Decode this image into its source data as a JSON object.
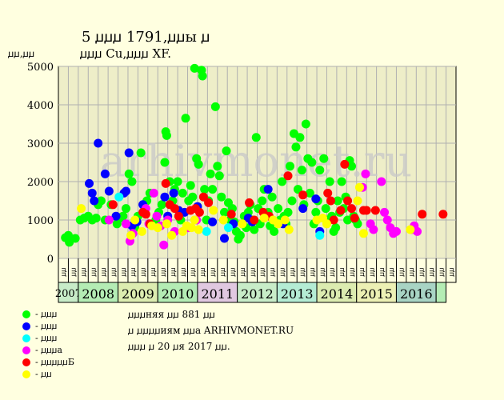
{
  "title_line1": "5 ꙡꙡꙡ 1791,ꙡꙡы ꙡ",
  "title_line2": "ꙡꙡꙡ Cu,ꙡꙡꙡ XF.",
  "y_unit_label": "ꙡꙡ,ꙡꙡ",
  "watermark": "arhivmonet.ru",
  "legend": [
    {
      "label": "- ꙡꙡꙡ",
      "color": "#00ff00"
    },
    {
      "label": "- ꙡꙡꙡ",
      "color": "#0000ff"
    },
    {
      "label": "- ꙡꙡꙡ",
      "color": "#00ffff"
    },
    {
      "label": "- ꙡꙡꙡа",
      "color": "#ff00ff"
    },
    {
      "label": "- ꙡꙡꙡꙡꙡБ",
      "color": "#ff0000"
    },
    {
      "label": "- ꙡꙡ",
      "color": "#ffff00"
    }
  ],
  "notes": {
    "line1": "ꙡꙡꙡняя ꙡꙡ 881 ꙡꙡ",
    "line2": "ꙡ ꙡꙡꙡꙡиям ꙡꙡа ARHIVMONET.RU",
    "line3": "ꙡꙡꙡ ꙡ 20 ꙡя 2017 ꙡꙡ."
  },
  "chart_data": {
    "type": "scatter",
    "ylim": [
      0,
      5000
    ],
    "yticks": [
      0,
      1000,
      2000,
      3000,
      4000,
      5000
    ],
    "grid": true,
    "quarter_labels": [
      "ꙡꙡ",
      "ꙡꙡ",
      "ꙡꙡ",
      "ꙡꙡ",
      "ꙡꙡ",
      "ꙡꙡ",
      "ꙡꙡ",
      "ꙡꙡ",
      "ꙡꙡ",
      "ꙡꙡ",
      "ꙡꙡ",
      "ꙡꙡ",
      "ꙡꙡ",
      "ꙡꙡ",
      "ꙡꙡ",
      "ꙡꙡ",
      "ꙡꙡ",
      "ꙡꙡ",
      "ꙡꙡ",
      "ꙡꙡ",
      "ꙡꙡ",
      "ꙡꙡ",
      "ꙡꙡ",
      "ꙡꙡ",
      "ꙡꙡ",
      "ꙡꙡ",
      "ꙡꙡ",
      "ꙡꙡ",
      "ꙡꙡ",
      "ꙡꙡ",
      "ꙡꙡ",
      "ꙡꙡ",
      "ꙡꙡ",
      "ꙡꙡ",
      "ꙡꙡ",
      "ꙡꙡ",
      "ꙡꙡ",
      "ꙡꙡ",
      "ꙡꙡ",
      "ꙡꙡ"
    ],
    "years": [
      {
        "label": "2007",
        "start": 0,
        "span": 2,
        "color": "#c8ecc8"
      },
      {
        "label": "2008",
        "start": 2,
        "span": 4,
        "color": "#b4ecb4"
      },
      {
        "label": "2009",
        "start": 6,
        "span": 4,
        "color": "#dcecb0"
      },
      {
        "label": "2010",
        "start": 10,
        "span": 4,
        "color": "#b4ecb4"
      },
      {
        "label": "2011",
        "start": 14,
        "span": 4,
        "color": "#e0c8e0"
      },
      {
        "label": "2012",
        "start": 18,
        "span": 4,
        "color": "#c8ecc8"
      },
      {
        "label": "2013",
        "start": 22,
        "span": 4,
        "color": "#b4ecd4"
      },
      {
        "label": "2014",
        "start": 26,
        "span": 4,
        "color": "#dcecb0"
      },
      {
        "label": "2015",
        "start": 30,
        "span": 4,
        "color": "#ecf0b4"
      },
      {
        "label": "2016",
        "start": 34,
        "span": 4,
        "color": "#a8d4c4"
      },
      {
        "label": "",
        "start": 38,
        "span": 1,
        "color": "#b4ecb4"
      }
    ],
    "series": [
      {
        "color": "#00ff00",
        "points": [
          [
            0.2,
            540
          ],
          [
            0.5,
            600
          ],
          [
            0.6,
            420
          ],
          [
            1.2,
            520
          ],
          [
            1.7,
            1000
          ],
          [
            2.1,
            1050
          ],
          [
            2.5,
            1100
          ],
          [
            2.9,
            1000
          ],
          [
            3.3,
            1050
          ],
          [
            3.5,
            1400
          ],
          [
            3.8,
            1500
          ],
          [
            4.2,
            1000
          ],
          [
            4.8,
            1400
          ],
          [
            5.4,
            900
          ],
          [
            5.7,
            1050
          ],
          [
            6.0,
            1100
          ],
          [
            6.3,
            1300
          ],
          [
            6.6,
            2200
          ],
          [
            6.9,
            2000
          ],
          [
            7.2,
            800
          ],
          [
            7.5,
            1100
          ],
          [
            7.8,
            2750
          ],
          [
            8.1,
            1200
          ],
          [
            8.4,
            1500
          ],
          [
            8.7,
            1700
          ],
          [
            9.0,
            900
          ],
          [
            9.3,
            1000
          ],
          [
            9.6,
            1200
          ],
          [
            9.9,
            1400
          ],
          [
            10.2,
            2500
          ],
          [
            10.3,
            3300
          ],
          [
            10.4,
            3200
          ],
          [
            10.7,
            2000
          ],
          [
            11.0,
            1500
          ],
          [
            11.2,
            1800
          ],
          [
            11.5,
            2000
          ],
          [
            11.8,
            1000
          ],
          [
            12.0,
            1700
          ],
          [
            12.3,
            3650
          ],
          [
            12.6,
            1500
          ],
          [
            12.8,
            1900
          ],
          [
            13.0,
            1600
          ],
          [
            13.2,
            4950
          ],
          [
            13.4,
            2600
          ],
          [
            13.6,
            2450
          ],
          [
            13.9,
            4900
          ],
          [
            14.0,
            4750
          ],
          [
            14.2,
            1800
          ],
          [
            14.4,
            1000
          ],
          [
            14.6,
            1500
          ],
          [
            14.8,
            2200
          ],
          [
            15.0,
            1800
          ],
          [
            15.3,
            3950
          ],
          [
            15.5,
            2400
          ],
          [
            15.7,
            2150
          ],
          [
            15.9,
            1600
          ],
          [
            16.2,
            1200
          ],
          [
            16.4,
            2800
          ],
          [
            16.6,
            1450
          ],
          [
            16.8,
            1000
          ],
          [
            17.0,
            1300
          ],
          [
            17.2,
            950
          ],
          [
            17.4,
            700
          ],
          [
            17.6,
            500
          ],
          [
            17.8,
            600
          ],
          [
            18.0,
            900
          ],
          [
            18.2,
            1100
          ],
          [
            18.4,
            800
          ],
          [
            18.6,
            1200
          ],
          [
            18.8,
            1400
          ],
          [
            19.0,
            1000
          ],
          [
            19.2,
            750
          ],
          [
            19.4,
            3150
          ],
          [
            19.6,
            1300
          ],
          [
            19.8,
            900
          ],
          [
            20.0,
            1500
          ],
          [
            20.2,
            1800
          ],
          [
            20.4,
            1100
          ],
          [
            20.6,
            1200
          ],
          [
            20.8,
            850
          ],
          [
            21.0,
            1600
          ],
          [
            21.2,
            700
          ],
          [
            21.4,
            950
          ],
          [
            21.6,
            1300
          ],
          [
            21.8,
            1000
          ],
          [
            22.0,
            2000
          ],
          [
            22.2,
            1100
          ],
          [
            22.4,
            900
          ],
          [
            22.6,
            1200
          ],
          [
            22.8,
            2400
          ],
          [
            23.0,
            1500
          ],
          [
            23.2,
            3250
          ],
          [
            23.4,
            2900
          ],
          [
            23.6,
            1800
          ],
          [
            23.8,
            3150
          ],
          [
            24.0,
            2300
          ],
          [
            24.2,
            1400
          ],
          [
            24.4,
            3500
          ],
          [
            24.6,
            2600
          ],
          [
            24.8,
            1700
          ],
          [
            25.0,
            2500
          ],
          [
            25.2,
            900
          ],
          [
            25.4,
            1200
          ],
          [
            25.6,
            1500
          ],
          [
            25.8,
            2300
          ],
          [
            26.2,
            2600
          ],
          [
            26.4,
            1300
          ],
          [
            26.6,
            1000
          ],
          [
            26.8,
            2000
          ],
          [
            27.0,
            1100
          ],
          [
            27.2,
            700
          ],
          [
            27.4,
            800
          ],
          [
            27.6,
            1500
          ],
          [
            27.8,
            1200
          ],
          [
            28.0,
            2000
          ],
          [
            28.2,
            1300
          ],
          [
            28.4,
            1600
          ],
          [
            28.6,
            1000
          ],
          [
            28.8,
            2550
          ],
          [
            29.0,
            2400
          ],
          [
            29.2,
            1100
          ],
          [
            29.4,
            1000
          ],
          [
            29.6,
            900
          ]
        ]
      },
      {
        "color": "#0000ff",
        "points": [
          [
            2.6,
            1950
          ],
          [
            2.9,
            1700
          ],
          [
            3.1,
            1500
          ],
          [
            3.5,
            3000
          ],
          [
            4.2,
            2200
          ],
          [
            4.6,
            1750
          ],
          [
            5.3,
            1100
          ],
          [
            6.1,
            1700
          ],
          [
            6.3,
            1750
          ],
          [
            6.6,
            2750
          ],
          [
            6.9,
            850
          ],
          [
            7.4,
            950
          ],
          [
            8.0,
            1400
          ],
          [
            10.2,
            1600
          ],
          [
            10.5,
            1100
          ],
          [
            11.1,
            1700
          ],
          [
            11.6,
            1250
          ],
          [
            12.2,
            1200
          ],
          [
            13.5,
            1350
          ],
          [
            15.0,
            950
          ],
          [
            16.2,
            520
          ],
          [
            17.1,
            900
          ],
          [
            18.6,
            1050
          ],
          [
            19.0,
            950
          ],
          [
            20.6,
            1800
          ],
          [
            22.1,
            900
          ],
          [
            24.1,
            1300
          ],
          [
            25.4,
            1550
          ],
          [
            25.8,
            700
          ]
        ]
      },
      {
        "color": "#00ffff",
        "points": [
          [
            5.6,
            1600
          ],
          [
            14.4,
            700
          ],
          [
            16.6,
            800
          ],
          [
            25.8,
            600
          ]
        ]
      },
      {
        "color": "#ff00ff",
        "points": [
          [
            4.6,
            1000
          ],
          [
            6.3,
            900
          ],
          [
            6.7,
            450
          ],
          [
            7.0,
            650
          ],
          [
            8.3,
            1300
          ],
          [
            8.6,
            900
          ],
          [
            9.1,
            1700
          ],
          [
            9.4,
            1100
          ],
          [
            9.8,
            850
          ],
          [
            10.1,
            350
          ],
          [
            10.5,
            1000
          ],
          [
            11.2,
            700
          ],
          [
            12.6,
            800
          ],
          [
            13.4,
            1000
          ],
          [
            30.1,
            1850
          ],
          [
            30.4,
            2200
          ],
          [
            30.9,
            900
          ],
          [
            32.0,
            2000
          ],
          [
            32.3,
            1200
          ],
          [
            32.6,
            1000
          ],
          [
            32.9,
            800
          ],
          [
            33.2,
            650
          ],
          [
            31.2,
            750
          ],
          [
            33.5,
            700
          ],
          [
            35.0,
            750
          ],
          [
            35.3,
            850
          ],
          [
            35.6,
            700
          ]
        ]
      },
      {
        "color": "#ff0000",
        "points": [
          [
            5.0,
            1400
          ],
          [
            8.0,
            1200
          ],
          [
            8.3,
            1150
          ],
          [
            8.7,
            900
          ],
          [
            10.3,
            1950
          ],
          [
            10.7,
            1400
          ],
          [
            11.2,
            1300
          ],
          [
            11.6,
            1100
          ],
          [
            12.8,
            1250
          ],
          [
            13.3,
            1300
          ],
          [
            13.7,
            1200
          ],
          [
            14.1,
            1600
          ],
          [
            14.6,
            1450
          ],
          [
            16.9,
            1150
          ],
          [
            18.7,
            1450
          ],
          [
            19.2,
            1000
          ],
          [
            20.1,
            1200
          ],
          [
            20.7,
            1100
          ],
          [
            22.6,
            2150
          ],
          [
            24.1,
            1650
          ],
          [
            26.6,
            1700
          ],
          [
            26.9,
            1500
          ],
          [
            27.2,
            1000
          ],
          [
            27.9,
            1250
          ],
          [
            28.3,
            2450
          ],
          [
            28.6,
            1500
          ],
          [
            29.0,
            1300
          ],
          [
            29.3,
            1050
          ],
          [
            30.2,
            1250
          ],
          [
            30.5,
            1250
          ],
          [
            31.4,
            1250
          ],
          [
            36.1,
            1150
          ],
          [
            38.2,
            1150
          ]
        ]
      },
      {
        "color": "#ffff00",
        "points": [
          [
            1.8,
            1300
          ],
          [
            6.8,
            600
          ],
          [
            7.2,
            1000
          ],
          [
            7.9,
            700
          ],
          [
            8.9,
            850
          ],
          [
            9.5,
            800
          ],
          [
            10.4,
            900
          ],
          [
            10.9,
            600
          ],
          [
            12.0,
            700
          ],
          [
            12.4,
            850
          ],
          [
            12.9,
            800
          ],
          [
            13.2,
            1000
          ],
          [
            13.6,
            750
          ],
          [
            15.1,
            1250
          ],
          [
            16.1,
            1000
          ],
          [
            18.0,
            900
          ],
          [
            20.2,
            1050
          ],
          [
            21.1,
            1000
          ],
          [
            21.6,
            900
          ],
          [
            22.3,
            1000
          ],
          [
            22.7,
            750
          ],
          [
            25.5,
            1000
          ],
          [
            26.1,
            1050
          ],
          [
            26.5,
            900
          ],
          [
            29.6,
            1500
          ],
          [
            29.8,
            1850
          ],
          [
            30.2,
            650
          ],
          [
            34.9,
            750
          ]
        ]
      }
    ]
  }
}
